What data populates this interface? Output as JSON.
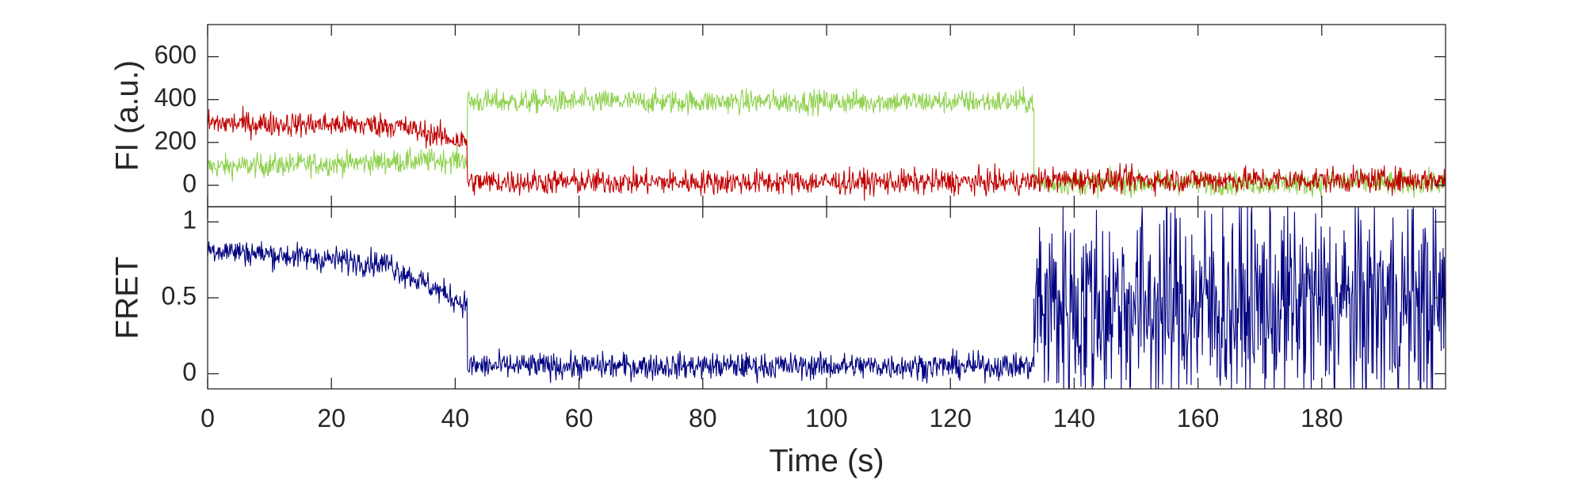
{
  "chart_data": [
    {
      "panel": "top",
      "type": "line",
      "ylabel": "FI (a.u.)",
      "xlim": [
        0,
        200
      ],
      "ylim": [
        -100,
        750
      ],
      "yticks": [
        0,
        200,
        400,
        600
      ],
      "grid": false,
      "colors": {
        "donor": "#8fd14f",
        "acceptor": "#c00000"
      },
      "series": [
        {
          "key": "donor",
          "color": "#8fd14f",
          "noise": 70,
          "segments": [
            {
              "t": [
                0,
                42
              ],
              "y": [
                85,
                120
              ]
            },
            {
              "t": [
                42,
                133.5
              ],
              "y": [
                390,
                390
              ]
            },
            {
              "t": [
                133.5,
                200
              ],
              "y": [
                10,
                10
              ]
            }
          ]
        },
        {
          "key": "acceptor",
          "color": "#c00000",
          "noise": 75,
          "segments": [
            {
              "t": [
                0,
                30
              ],
              "y": [
                290,
                280
              ]
            },
            {
              "t": [
                30,
                42
              ],
              "y": [
                280,
                200
              ]
            },
            {
              "t": [
                42,
                133.5
              ],
              "y": [
                15,
                15
              ]
            },
            {
              "t": [
                133.5,
                200
              ],
              "y": [
                25,
                25
              ]
            }
          ]
        }
      ]
    },
    {
      "panel": "bottom",
      "type": "line",
      "ylabel": "FRET",
      "xlabel": "Time (s)",
      "xlim": [
        0,
        200
      ],
      "ylim": [
        -0.1,
        1.1
      ],
      "yticks": [
        0,
        0.5,
        1
      ],
      "ytick_labels": [
        "0",
        "0.5",
        "1"
      ],
      "xticks": [
        0,
        20,
        40,
        60,
        80,
        100,
        120,
        140,
        160,
        180
      ],
      "grid": false,
      "colors": {
        "fret": "#000080"
      },
      "series": [
        {
          "key": "fret",
          "color": "#000080",
          "noise": 0.11,
          "segments": [
            {
              "t": [
                0,
                30
              ],
              "y": [
                0.82,
                0.72
              ]
            },
            {
              "t": [
                30,
                42
              ],
              "y": [
                0.7,
                0.45
              ]
            },
            {
              "t": [
                42,
                133.5
              ],
              "y": [
                0.05,
                0.05
              ]
            },
            {
              "t": [
                133.5,
                200
              ],
              "y": [
                0.45,
                0.45
              ],
              "noise": 0.9
            }
          ]
        }
      ]
    }
  ]
}
